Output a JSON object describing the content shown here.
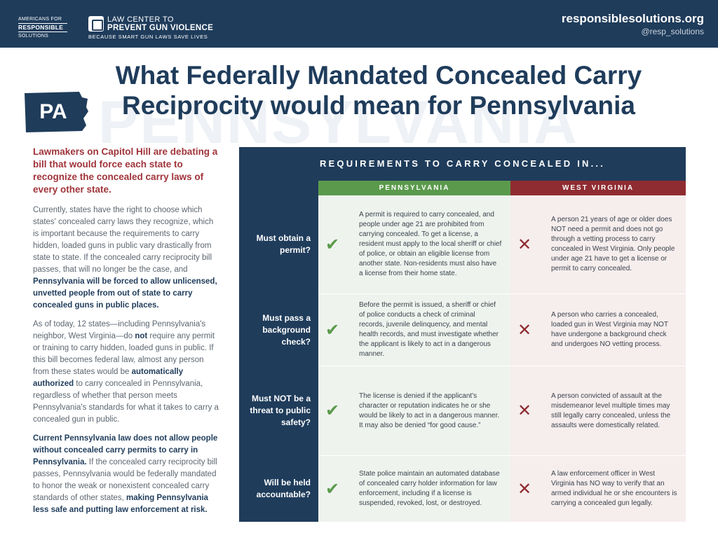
{
  "header": {
    "org1": {
      "line1": "AMERICANS FOR",
      "line2": "RESPONSIBLE",
      "line3": "SOLUTIONS"
    },
    "org2": {
      "line1": "LAW CENTER TO",
      "line2": "PREVENT GUN VIOLENCE",
      "tagline": "BECAUSE SMART GUN LAWS SAVE LIVES"
    },
    "url": "responsiblesolutions.org",
    "handle": "@resp_solutions"
  },
  "title": {
    "badge": "PA",
    "watermark": "PENNSYLVANIA",
    "w1": "What ",
    "w2": "Federally Mandated Concealed Carry",
    "w3": "Reciprocity",
    "w4": " would mean for ",
    "w5": "Pennsylvania"
  },
  "left": {
    "lead": "Lawmakers on Capitol Hill are debating a bill that would force each state to recognize the concealed carry laws of every other state.",
    "p1a": "Currently, states have the right to choose which states' concealed carry laws they recognize, which is important because the requirements to carry hidden, loaded guns in public vary drastically from state to state. If the concealed carry reciprocity bill passes, that will no longer be the case, and ",
    "p1b": "Pennsylvania will be forced to allow unlicensed, unvetted people from out of state to carry concealed guns in public places.",
    "p2a": "As of today, 12 states—including Pennsylvania's neighbor, West Virginia—do ",
    "p2b": "not",
    "p2c": " require any permit or training to carry hidden, loaded guns in public. If this bill becomes federal law, almost any person from these states would be ",
    "p2d": "automatically authorized",
    "p2e": " to carry concealed in Pennsylvania, regardless of whether that person meets Pennsylvania's standards for what it takes to carry a concealed gun in public.",
    "p3a": "Current Pennsylvania law does not allow people without concealed carry permits to carry in Pennsylvania.",
    "p3b": " If the concealed carry reciprocity bill passes, Pennsylvania would be federally mandated to honor the weak or nonexistent concealed carry standards of other states, ",
    "p3c": "making Pennsylvania less safe and putting law enforcement at risk."
  },
  "table": {
    "heading": "REQUIREMENTS TO CARRY CONCEALED IN...",
    "col_pa": "PENNSYLVANIA",
    "col_wv": "WEST VIRGINIA",
    "check": "✔",
    "cross": "✕",
    "rows": [
      {
        "question": "Must obtain a permit?",
        "pa": "A permit is required to carry concealed, and people under age 21 are prohibited from carrying concealed. To get a license, a resident must apply to the local sheriff or chief of police, or obtain an eligible license from another state. Non-residents must also have a license from their home state.",
        "wv": "A person 21 years of age or older does NOT need a permit and does not go through a vetting process to carry concealed in West Virginia. Only people under age 21 have to get a license or permit to carry concealed."
      },
      {
        "question": "Must pass a background check?",
        "pa": "Before the permit is issued, a sheriff or chief of police conducts a check of criminal records, juvenile delinquency, and mental health records, and must investigate whether the applicant is likely to act in a dangerous manner.",
        "wv": "A person who carries a concealed, loaded gun in West Virginia may NOT have undergone a background check and undergoes NO vetting process."
      },
      {
        "question": "Must NOT be a threat to public safety?",
        "pa": "The license is denied if the applicant's character or reputation indicates he or she would be likely to act in a dangerous manner. It may also be denied “for good cause.”",
        "wv": "A person convicted of assault at the misdemeanor level multiple times may still legally carry concealed, unless the assaults were domestically related."
      },
      {
        "question": "Will be held accountable?",
        "pa": "State police maintain an automated database of concealed carry holder information for law enforcement, including if a license is suspended, revoked, lost, or destroyed.",
        "wv": "A law enforcement officer in West Virginia has NO way to verify that an armed individual he or she encounters is carrying a concealed gun legally."
      }
    ]
  }
}
